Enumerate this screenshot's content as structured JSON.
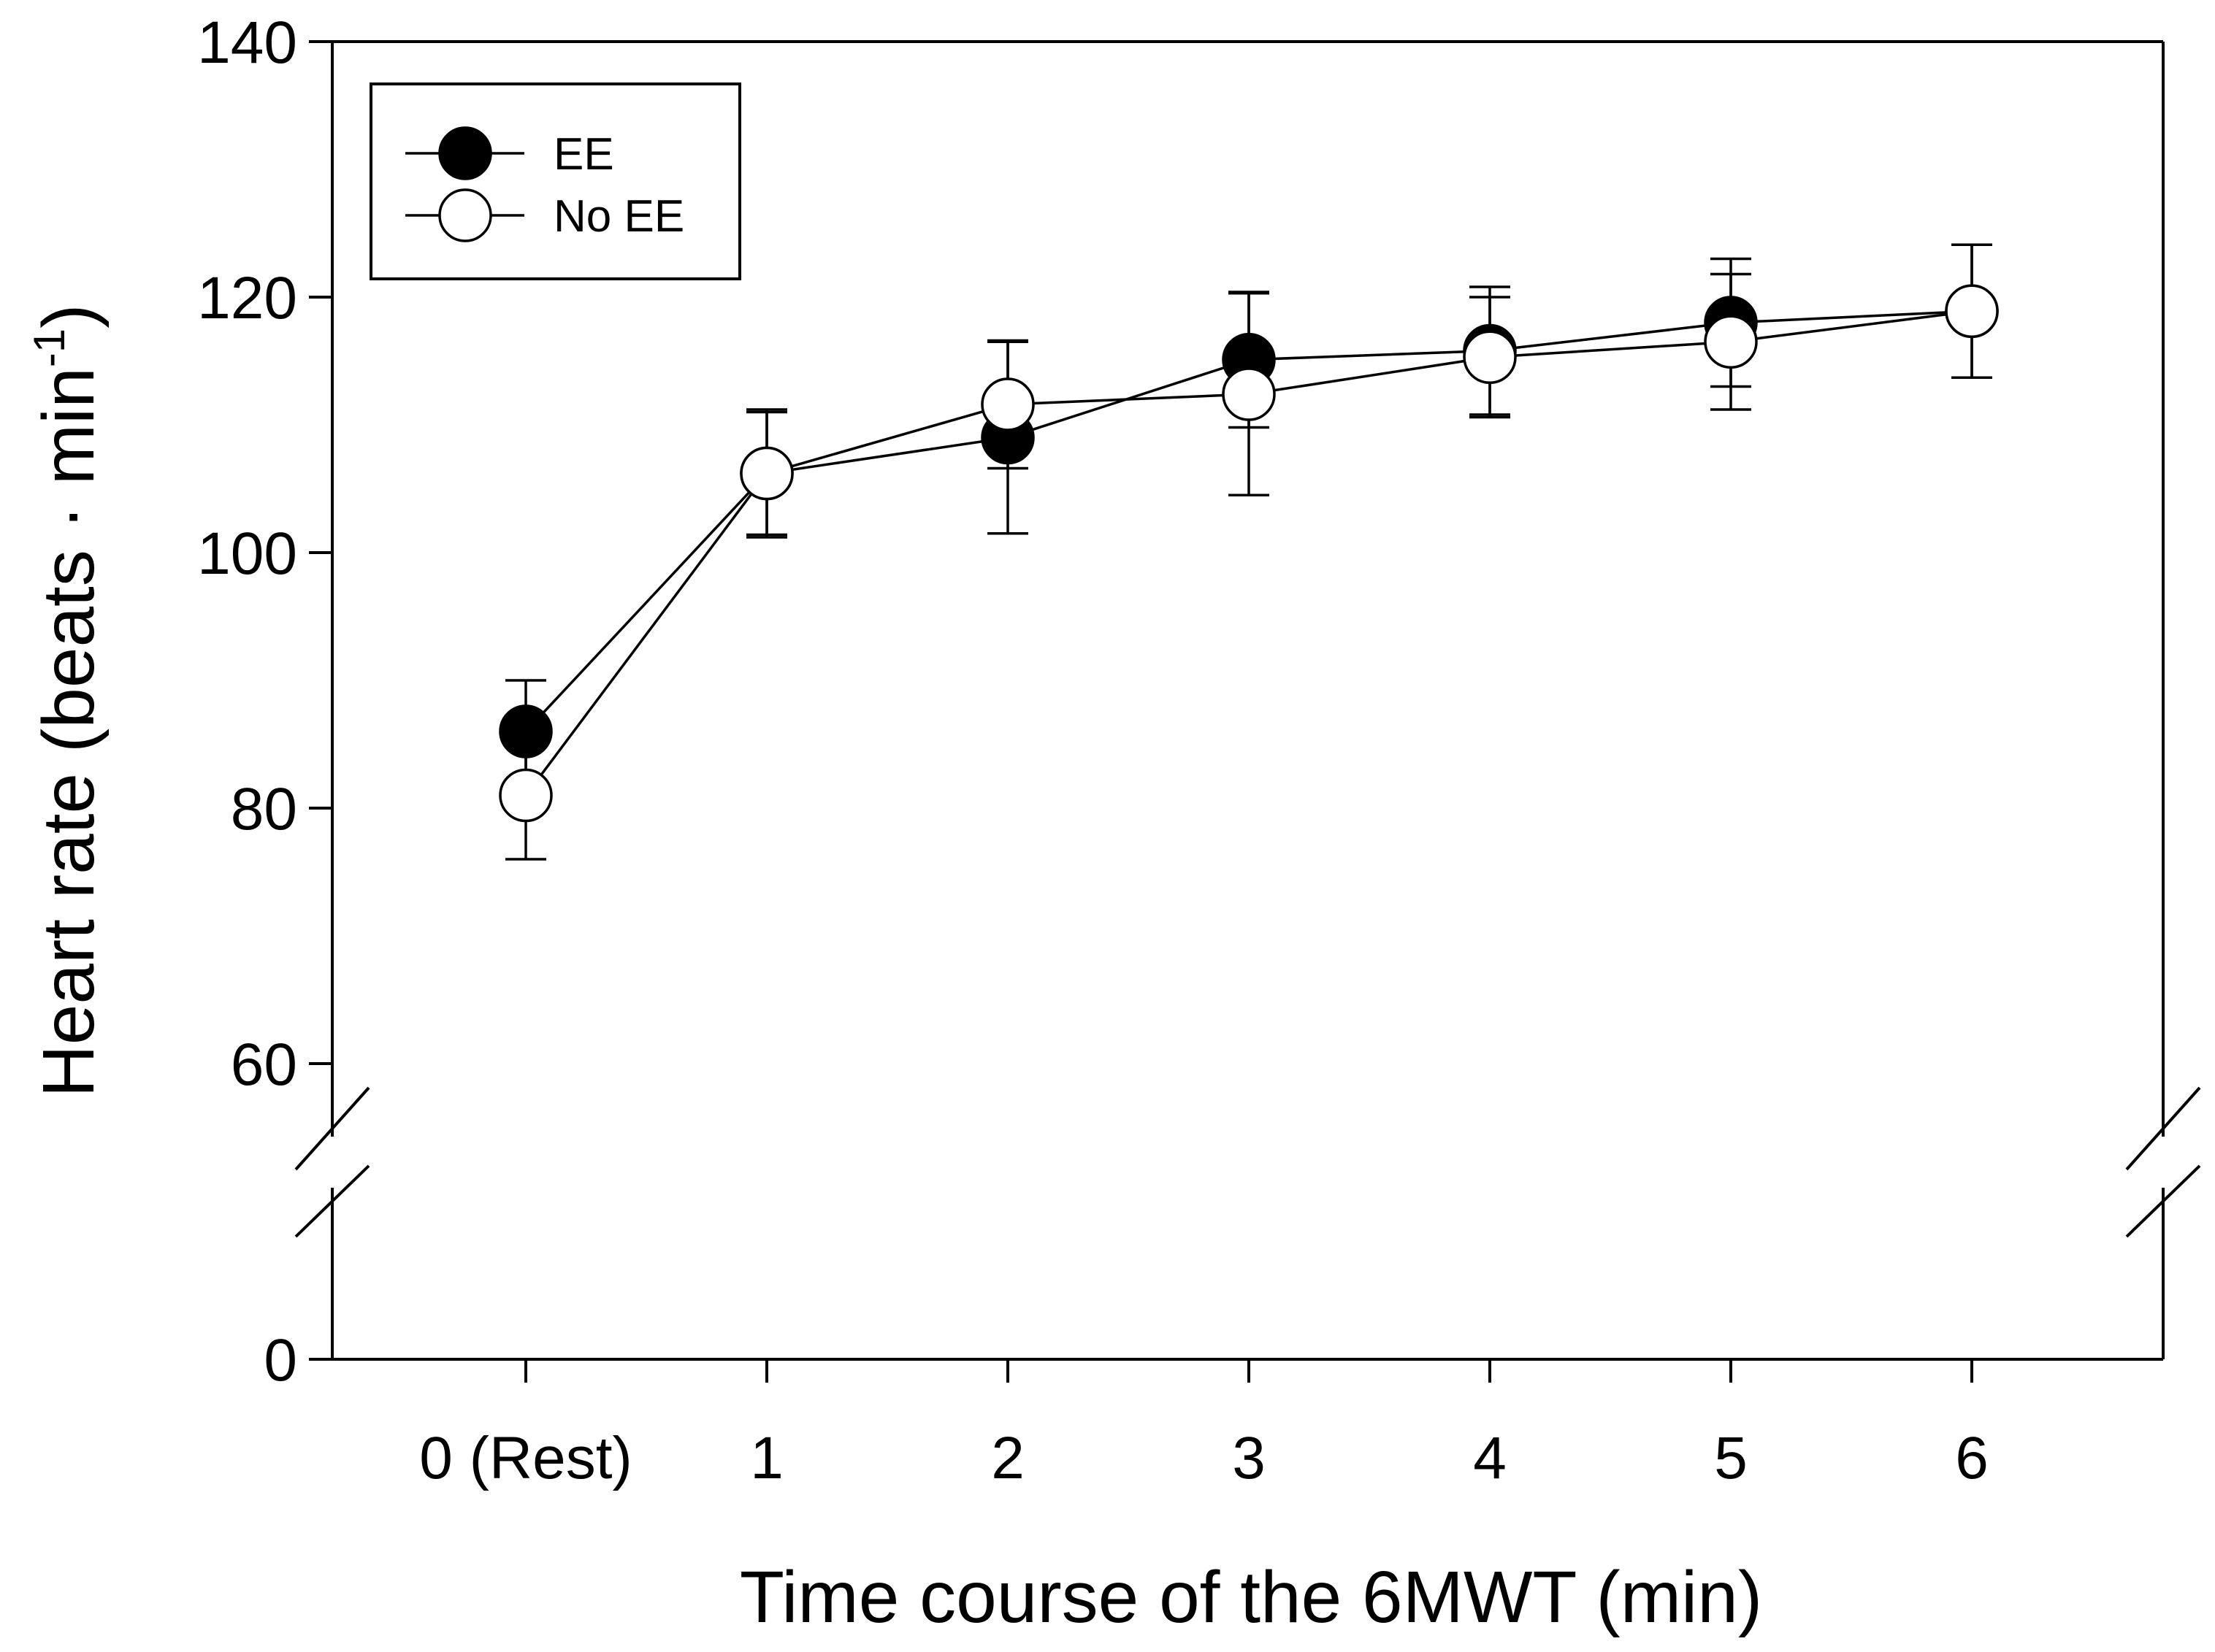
{
  "chart_data": {
    "type": "line",
    "title": "",
    "xlabel": "Time course of the 6MWT (min)",
    "ylabel": "Heart rate (beats · min",
    "ylabel_superscript": "-1",
    "ylabel_close": ")",
    "categories": [
      "0 (Rest)",
      "1",
      "2",
      "3",
      "4",
      "5",
      "6"
    ],
    "y_ticks": [
      0,
      60,
      80,
      100,
      120,
      140
    ],
    "y_tick_labels": [
      "0",
      "60",
      "80",
      "100",
      "120",
      "140"
    ],
    "ylim": [
      0,
      140
    ],
    "y_axis_break": [
      25,
      57
    ],
    "grid": false,
    "legend_position": "top-left",
    "series": [
      {
        "name": "EE",
        "marker": "filled-circle",
        "values": [
          86,
          106.2,
          109,
          115.1,
          115.8,
          118,
          118.9
        ],
        "error": [
          4,
          4.8,
          7.5,
          5.3,
          5,
          5,
          5.2
        ]
      },
      {
        "name": "No EE",
        "marker": "open-circle",
        "values": [
          81,
          106.2,
          111.6,
          112.4,
          115.3,
          116.5,
          118.9
        ],
        "error": [
          5,
          5,
          5,
          7.9,
          4.7,
          5.3,
          5.2
        ]
      }
    ]
  }
}
